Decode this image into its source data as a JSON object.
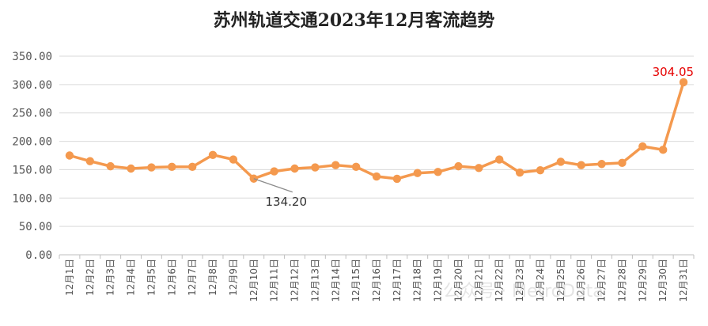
{
  "chart_data": {
    "type": "line",
    "title": "苏州轨道交通2023年12月客流趋势",
    "xlabel": "",
    "ylabel": "",
    "ylim": [
      0,
      350
    ],
    "yticks": [
      0,
      50,
      100,
      150,
      200,
      250,
      300,
      350
    ],
    "y_tick_labels": [
      "0.00",
      "50.00",
      "100.00",
      "150.00",
      "200.00",
      "250.00",
      "300.00",
      "350.00"
    ],
    "grid": true,
    "legend": "none",
    "categories": [
      "12月1日",
      "12月2日",
      "12月3日",
      "12月4日",
      "12月5日",
      "12月6日",
      "12月7日",
      "12月8日",
      "12月9日",
      "12月10日",
      "12月11日",
      "12月12日",
      "12月13日",
      "12月14日",
      "12月15日",
      "12月16日",
      "12月17日",
      "12月18日",
      "12月19日",
      "12月20日",
      "12月21日",
      "12月22日",
      "12月23日",
      "12月24日",
      "12月25日",
      "12月26日",
      "12月27日",
      "12月28日",
      "12月29日",
      "12月30日",
      "12月31日"
    ],
    "series": [
      {
        "name": "",
        "color": "#f4994e",
        "values": [
          175,
          165,
          156,
          152,
          154,
          155,
          155,
          176,
          168,
          134.2,
          147,
          152,
          154,
          158,
          155,
          138,
          134,
          144,
          146,
          156,
          153,
          168,
          145,
          149,
          164,
          158,
          160,
          162,
          191,
          185,
          304.05
        ]
      }
    ],
    "annotations": [
      {
        "category": "12月31日",
        "text": "304.05",
        "color": "#e60000"
      },
      {
        "category": "12月10日",
        "text": "134.20",
        "color": "#333333"
      }
    ]
  },
  "watermark": {
    "text": "公众号 · MetroData"
  },
  "colors": {
    "line": "#f4994e",
    "grid": "#d9d9d9",
    "axis": "#bfbfbf"
  }
}
